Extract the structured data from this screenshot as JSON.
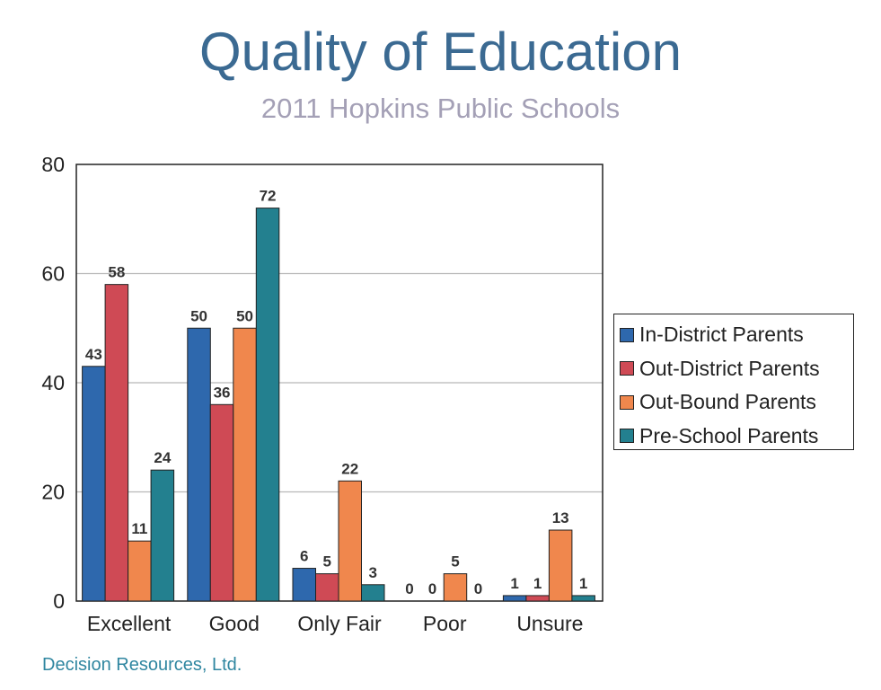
{
  "title": "Quality of Education",
  "subtitle": "2011 Hopkins Public Schools",
  "footer": "Decision Resources, Ltd.",
  "colors": {
    "title": "#3b6a92",
    "subtitle": "#a4a0b6",
    "footer": "#2f86a0",
    "series": [
      "#2e68ad",
      "#cf4a55",
      "#f0874d",
      "#23808f"
    ]
  },
  "chart_data": {
    "type": "bar",
    "categories": [
      "Excellent",
      "Good",
      "Only Fair",
      "Poor",
      "Unsure"
    ],
    "series": [
      {
        "name": "In-District Parents",
        "values": [
          43,
          50,
          6,
          0,
          1
        ]
      },
      {
        "name": "Out-District Parents",
        "values": [
          58,
          36,
          5,
          0,
          1
        ]
      },
      {
        "name": "Out-Bound Parents",
        "values": [
          11,
          50,
          22,
          5,
          13
        ]
      },
      {
        "name": "Pre-School Parents",
        "values": [
          24,
          72,
          3,
          0,
          1
        ]
      }
    ],
    "ylim": [
      0,
      80
    ],
    "yticks": [
      0,
      20,
      40,
      60,
      80
    ],
    "grid": true,
    "legend_position": "right",
    "data_labels": true
  }
}
